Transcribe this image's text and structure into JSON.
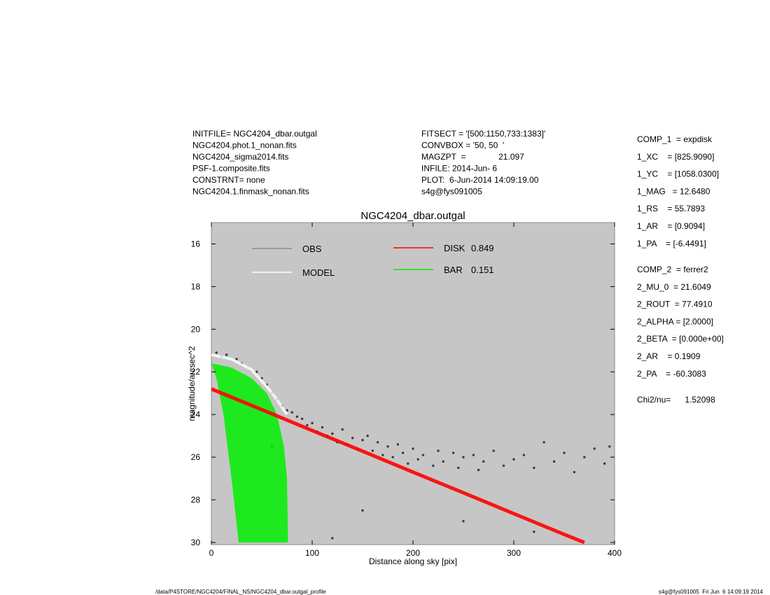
{
  "info_left": [
    "INITFILE= NGC4204_dbar.outgal",
    "NGC4204.phot.1_nonan.fits",
    "NGC4204_sigma2014.fits",
    "PSF-1.composite.fits",
    "CONSTRNT= none",
    "NGC4204.1.finmask_nonan.fits"
  ],
  "info_mid": [
    "FITSECT = '[500:1150,733:1383]'",
    "CONVBOX = '50, 50  '",
    "MAGZPT  =              21.097",
    "INFILE: 2014-Jun- 6",
    "PLOT:  6-Jun-2014 14:09:19.00",
    "s4g@fys091005"
  ],
  "params": [
    [
      "COMP_1  = expdisk",
      "1_XC    = [825.9090]",
      "1_YC    = [1058.0300]",
      "1_MAG   = 12.6480",
      "1_RS    = 55.7893",
      "1_AR    = [0.9094]",
      "1_PA    = [-6.4491]"
    ],
    [
      "COMP_2  = ferrer2",
      "2_MU_0  = 21.6049",
      "2_ROUT  = 77.4910",
      "2_ALPHA = [2.0000]",
      "2_BETA  = [0.000e+00]",
      "2_AR    = 0.1909",
      "2_PA    = -60.3083"
    ],
    [
      "Chi2/nu=      1.52098"
    ]
  ],
  "footer": {
    "left": "/data/P4STORE/NGC4204/FINAL_NS/NGC4204_dbar.outgal_profile",
    "right": "s4g@fys091005  Fri Jun  6 14:09:19 2014"
  },
  "chart_data": {
    "type": "scatter",
    "title": "NGC4204_dbar.outgal",
    "x_label": "Distance along sky [pix]",
    "y_label": "magnitude/arcsec^2",
    "xlim": [
      0,
      400
    ],
    "ylim": [
      30.1,
      15
    ],
    "xticks": [
      0,
      100,
      200,
      300,
      400
    ],
    "yticks": [
      16,
      18,
      20,
      22,
      24,
      26,
      28,
      30
    ],
    "background": "#c6c6c6",
    "grid": false,
    "series": [
      {
        "name": "OBS",
        "color": "#3a3a3a",
        "legend_color": "#8c8c8c",
        "style": "points",
        "x": [
          5,
          10,
          15,
          25,
          30,
          45,
          50,
          55,
          60,
          65,
          70,
          75,
          80,
          85,
          90,
          95,
          100,
          105,
          110,
          115,
          120,
          125,
          130,
          135,
          140,
          145,
          150,
          155,
          160,
          165,
          170,
          175,
          180,
          185,
          190,
          195,
          200,
          205,
          210,
          220,
          225,
          230,
          240,
          245,
          250,
          260,
          265,
          270,
          280,
          290,
          300,
          310,
          320,
          330,
          340,
          350,
          360,
          370,
          380,
          390,
          395,
          150,
          250,
          320,
          120,
          60
        ],
        "values": [
          21.1,
          21.3,
          21.2,
          21.4,
          21.6,
          22.0,
          22.3,
          22.6,
          23.0,
          23.3,
          23.6,
          23.8,
          23.9,
          24.1,
          24.2,
          24.5,
          24.4,
          24.8,
          24.6,
          25.0,
          24.9,
          25.3,
          24.7,
          25.4,
          25.1,
          25.6,
          25.2,
          25.0,
          25.7,
          25.3,
          25.9,
          25.5,
          26.0,
          25.4,
          25.8,
          26.3,
          25.6,
          26.1,
          25.9,
          26.4,
          25.7,
          26.2,
          25.8,
          26.5,
          26.0,
          25.9,
          26.6,
          26.2,
          25.7,
          26.4,
          26.1,
          25.9,
          26.5,
          25.3,
          26.2,
          25.8,
          26.7,
          26.0,
          25.6,
          26.3,
          25.5,
          28.5,
          29.0,
          29.5,
          29.8,
          25.5
        ]
      },
      {
        "name": "MODEL",
        "color": "#ffffff",
        "style": "line",
        "x": [
          0,
          20,
          40,
          55,
          65,
          75
        ],
        "values": [
          21.2,
          21.4,
          21.9,
          22.7,
          23.3,
          24.0
        ]
      },
      {
        "name": "DISK",
        "fraction": 0.849,
        "color": "#ff0000",
        "style": "band",
        "x": [
          0,
          50,
          100,
          150,
          200,
          250,
          300,
          350,
          370
        ],
        "values": [
          22.8,
          23.77,
          24.75,
          25.72,
          26.7,
          27.67,
          28.65,
          29.62,
          30.0
        ]
      },
      {
        "name": "BAR",
        "fraction": 0.151,
        "color": "#00ee00",
        "style": "area",
        "x": [
          0,
          20,
          40,
          55,
          65,
          72,
          75,
          76,
          27,
          20,
          12,
          5
        ],
        "values": [
          21.6,
          21.8,
          22.3,
          23.0,
          24.0,
          25.5,
          27.0,
          30.0,
          30.0,
          27.0,
          24.0,
          22.3
        ]
      }
    ]
  }
}
